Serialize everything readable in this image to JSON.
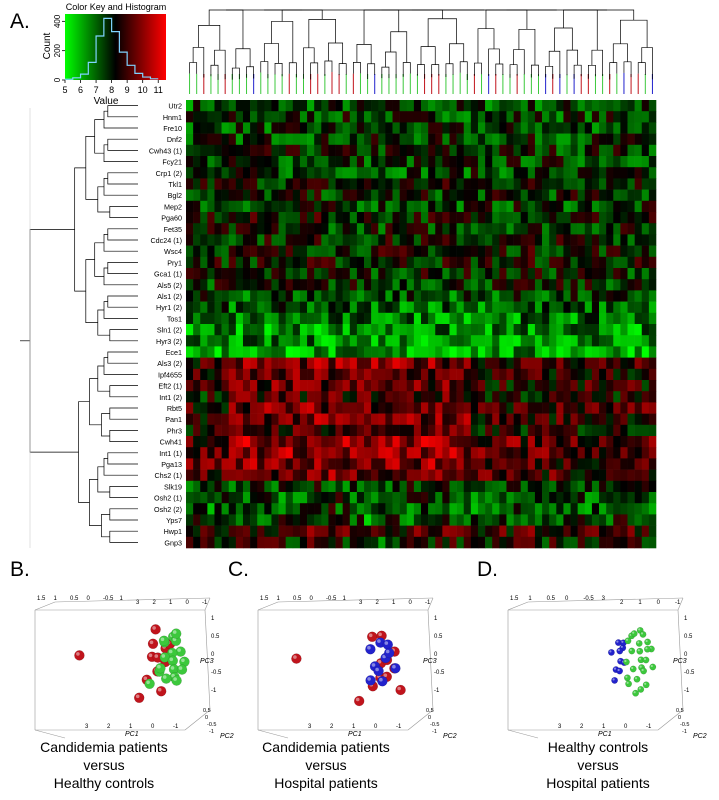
{
  "panels": {
    "a": {
      "letter": "A.",
      "color_key": {
        "title": "Color Key and Histogram",
        "xlabel": "Value",
        "ylabel": "Count",
        "x_ticks": [
          "5",
          "6",
          "7",
          "8",
          "9",
          "10",
          "11"
        ],
        "y_ticks": [
          "0",
          "200",
          "400"
        ]
      },
      "gene_labels": [
        "Utr2",
        "Hnm1",
        "Fre10",
        "Dnf2",
        "Cwh43 (1)",
        "Fcy21",
        "Crp1 (2)",
        "Tkl1",
        "Bgl2",
        "Mep2",
        "Pga60",
        "Fet35",
        "Cdc24 (1)",
        "Wsc4",
        "Pry1",
        "Gca1 (1)",
        "Als5 (2)",
        "Als1 (2)",
        "Hyr1 (2)",
        "Tos1",
        "Sln1 (2)",
        "Hyr3 (2)",
        "Ece1",
        "Als3 (2)",
        "Ipf4655",
        "Eft2 (1)",
        "Int1 (2)",
        "Rbt5",
        "Pan1",
        "Phr3",
        "Cwh41",
        "Int1 (1)",
        "Pga13",
        "Chs2 (1)",
        "Slk19",
        "Osh2 (1)",
        "Osh2 (2)",
        "Yps7",
        "Hwp1",
        "Gnp3"
      ]
    },
    "b": {
      "letter": "B.",
      "caption": [
        "Candidemia patients",
        "versus",
        "Healthy controls"
      ],
      "top_ticks": [
        "1.5",
        "1",
        "0.5",
        "0",
        "-0.5",
        "1",
        "3",
        "2",
        "1",
        "0",
        "-1"
      ],
      "right_ticks": [
        "1",
        "0.5",
        "0",
        "-0.5",
        "-1"
      ],
      "bottom_ticks": [
        "3",
        "2",
        "1",
        "0",
        "-1"
      ],
      "side_ticks": [
        "0.5",
        "0",
        "-0.5",
        "-1"
      ],
      "axis_labels": {
        "pc1": "PC1",
        "pc2": "PC2",
        "pc3": "PC3"
      }
    },
    "c": {
      "letter": "C.",
      "caption": [
        "Candidemia patients",
        "versus",
        "Hospital patients"
      ],
      "top_ticks": [
        "1.5",
        "1",
        "0.5",
        "0",
        "-0.5",
        "1",
        "3",
        "2",
        "1",
        "0",
        "-1"
      ],
      "right_ticks": [
        "1",
        "0.5",
        "0",
        "-0.5",
        "-1"
      ],
      "bottom_ticks": [
        "3",
        "2",
        "1",
        "0",
        "-1"
      ],
      "side_ticks": [
        "0.5",
        "0",
        "-0.5",
        "-1"
      ],
      "axis_labels": {
        "pc1": "PC1",
        "pc2": "PC2",
        "pc3": "PC3"
      }
    },
    "d": {
      "letter": "D.",
      "caption": [
        "Healthy controls",
        "versus",
        "Hospital patients"
      ],
      "top_ticks": [
        "1.5",
        "1",
        "0.5",
        "0",
        "-0.5",
        "3",
        "2",
        "1",
        "0",
        "-1"
      ],
      "right_ticks": [
        "1",
        "0.5",
        "0",
        "-0.5",
        "-1"
      ],
      "bottom_ticks": [
        "3",
        "2",
        "1",
        "0",
        "-1"
      ],
      "side_ticks": [
        "0.5",
        "0",
        "-0.5",
        "-1"
      ],
      "axis_labels": {
        "pc1": "PC1",
        "pc2": "PC2",
        "pc3": "PC3"
      }
    }
  },
  "colors": {
    "candidemia": "#c0141c",
    "healthy": "#3cc83c",
    "hospital": "#2222cc",
    "heat_low": "#00ff00",
    "heat_mid": "#000000",
    "heat_high": "#ff0000"
  },
  "chart_data": [
    {
      "type": "heatmap",
      "title": "Color Key and Histogram",
      "rows": [
        "Utr2",
        "Hnm1",
        "Fre10",
        "Dnf2",
        "Cwh43 (1)",
        "Fcy21",
        "Crp1 (2)",
        "Tkl1",
        "Bgl2",
        "Mep2",
        "Pga60",
        "Fet35",
        "Cdc24 (1)",
        "Wsc4",
        "Pry1",
        "Gca1 (1)",
        "Als5 (2)",
        "Als1 (2)",
        "Hyr1 (2)",
        "Tos1",
        "Sln1 (2)",
        "Hyr3 (2)",
        "Ece1",
        "Als3 (2)",
        "Ipf4655",
        "Eft2 (1)",
        "Int1 (2)",
        "Rbt5",
        "Pan1",
        "Phr3",
        "Cwh41",
        "Int1 (1)",
        "Pga13",
        "Chs2 (1)",
        "Slk19",
        "Osh2 (1)",
        "Osh2 (2)",
        "Yps7",
        "Hwp1",
        "Gnp3"
      ],
      "columns": 66,
      "value_range": [
        5,
        11
      ],
      "color_scale": [
        "green",
        "black",
        "red"
      ],
      "row_mean_values": [
        7.2,
        7.4,
        7.3,
        7.4,
        7.6,
        7.4,
        7.3,
        7.9,
        7.6,
        7.4,
        7.9,
        7.6,
        7.8,
        7.9,
        7.9,
        7.7,
        7.6,
        7.2,
        6.9,
        6.6,
        6.4,
        6.4,
        6.1,
        8.7,
        8.3,
        8.3,
        8.0,
        8.6,
        8.6,
        8.0,
        9.0,
        8.9,
        8.8,
        8.6,
        7.4,
        7.0,
        7.0,
        7.5,
        8.6,
        8.0
      ]
    },
    {
      "type": "bar",
      "title": "Color Key and Histogram",
      "xlabel": "Value",
      "ylabel": "Count",
      "x": [
        5.25,
        5.75,
        6.25,
        6.75,
        7.25,
        7.75,
        8.25,
        8.75,
        9.25,
        9.75,
        10.25,
        10.75
      ],
      "values": [
        5,
        15,
        40,
        120,
        300,
        420,
        330,
        190,
        100,
        45,
        20,
        8
      ],
      "xlim": [
        5,
        11.5
      ],
      "ylim": [
        0,
        450
      ]
    },
    {
      "type": "scatter",
      "title": "",
      "panel": "B",
      "xlabel": "PC1",
      "ylabel": "PC2",
      "zlabel": "PC3",
      "series": [
        {
          "name": "",
          "color": "#c0141c",
          "points": [
            [
              -2.6,
              0.3,
              0.2
            ],
            [
              -0.2,
              0.5,
              0.6
            ],
            [
              0.1,
              -0.3,
              0.9
            ],
            [
              0.3,
              0.2,
              0.4
            ],
            [
              -0.1,
              0.0,
              0.1
            ],
            [
              0.4,
              -0.2,
              -0.1
            ],
            [
              0.0,
              0.3,
              -0.3
            ],
            [
              0.2,
              -0.4,
              0.0
            ],
            [
              -0.3,
              0.1,
              -0.6
            ],
            [
              0.5,
              0.0,
              0.5
            ],
            [
              0.1,
              0.4,
              -0.9
            ],
            [
              -0.5,
              -0.1,
              -1.2
            ]
          ]
        },
        {
          "name": "",
          "color": "#3cc83c",
          "points": [
            [
              0.5,
              0.4,
              0.8
            ],
            [
              0.7,
              0.0,
              0.6
            ],
            [
              0.4,
              -0.3,
              0.5
            ],
            [
              0.8,
              0.2,
              0.3
            ],
            [
              0.6,
              -0.1,
              0.2
            ],
            [
              0.9,
              0.3,
              0.0
            ],
            [
              0.3,
              0.1,
              0.1
            ],
            [
              0.7,
              -0.4,
              -0.1
            ],
            [
              0.5,
              0.5,
              -0.2
            ],
            [
              0.9,
              0.0,
              -0.3
            ],
            [
              0.2,
              -0.2,
              -0.4
            ],
            [
              0.6,
              0.2,
              -0.5
            ],
            [
              0.4,
              -0.1,
              -0.6
            ],
            [
              0.8,
              -0.3,
              -0.7
            ],
            [
              0.1,
              0.3,
              -0.2
            ],
            [
              0.3,
              0.0,
              0.6
            ],
            [
              0.6,
              0.4,
              0.9
            ],
            [
              -0.1,
              -0.3,
              -0.8
            ]
          ]
        }
      ]
    },
    {
      "type": "scatter",
      "title": "",
      "panel": "C",
      "xlabel": "PC1",
      "ylabel": "PC2",
      "zlabel": "PC3",
      "series": [
        {
          "name": "",
          "color": "#c0141c",
          "points": [
            [
              -2.8,
              0.3,
              0.1
            ],
            [
              -0.3,
              0.4,
              0.8
            ],
            [
              0.2,
              -0.3,
              0.7
            ],
            [
              0.5,
              0.2,
              0.3
            ],
            [
              0.1,
              0.0,
              -0.1
            ],
            [
              0.6,
              -0.2,
              -0.3
            ],
            [
              0.0,
              0.3,
              -0.5
            ],
            [
              0.4,
              -0.4,
              -0.6
            ],
            [
              -0.2,
              0.1,
              -0.8
            ],
            [
              0.3,
              0.0,
              0.0
            ],
            [
              0.7,
              0.2,
              -0.9
            ],
            [
              -0.6,
              -0.1,
              -1.3
            ]
          ]
        },
        {
          "name": "",
          "color": "#2222cc",
          "points": [
            [
              0.0,
              0.3,
              0.6
            ],
            [
              0.3,
              0.1,
              0.5
            ],
            [
              -0.2,
              -0.2,
              0.3
            ],
            [
              0.2,
              0.2,
              0.1
            ],
            [
              0.4,
              -0.1,
              0.2
            ],
            [
              -0.1,
              0.0,
              -0.2
            ],
            [
              0.1,
              -0.3,
              -0.4
            ],
            [
              -0.3,
              0.2,
              -0.6
            ],
            [
              0.5,
              0.3,
              -0.2
            ],
            [
              0.2,
              -0.2,
              -0.7
            ]
          ]
        }
      ]
    },
    {
      "type": "scatter",
      "title": "",
      "panel": "D",
      "xlabel": "PC1",
      "ylabel": "PC2",
      "zlabel": "PC3",
      "series": [
        {
          "name": "",
          "color": "#2222cc",
          "points": [
            [
              -0.4,
              0.3,
              0.6
            ],
            [
              -0.2,
              0.1,
              0.4
            ],
            [
              -0.5,
              -0.2,
              0.2
            ],
            [
              -0.3,
              0.2,
              0.0
            ],
            [
              -0.1,
              -0.1,
              -0.1
            ],
            [
              -0.4,
              0.0,
              -0.3
            ],
            [
              -0.2,
              -0.3,
              -0.4
            ],
            [
              -0.5,
              0.2,
              -0.6
            ],
            [
              -0.3,
              0.1,
              0.3
            ],
            [
              -0.1,
              -0.2,
              0.5
            ]
          ]
        },
        {
          "name": "",
          "color": "#3cc83c",
          "points": [
            [
              0.3,
              0.4,
              1.0
            ],
            [
              0.5,
              0.0,
              0.8
            ],
            [
              0.2,
              -0.3,
              0.7
            ],
            [
              0.6,
              0.2,
              0.6
            ],
            [
              0.4,
              -0.1,
              0.5
            ],
            [
              0.7,
              0.3,
              0.4
            ],
            [
              0.1,
              0.1,
              0.3
            ],
            [
              0.5,
              -0.4,
              0.2
            ],
            [
              0.3,
              0.5,
              0.1
            ],
            [
              0.6,
              0.0,
              0.0
            ],
            [
              0.0,
              -0.2,
              -0.1
            ],
            [
              0.4,
              0.2,
              -0.2
            ],
            [
              0.2,
              -0.1,
              -0.3
            ],
            [
              0.6,
              -0.3,
              -0.4
            ],
            [
              -0.1,
              0.3,
              -0.5
            ],
            [
              0.3,
              0.0,
              -0.6
            ],
            [
              0.5,
              0.4,
              -0.7
            ],
            [
              0.1,
              -0.3,
              -0.8
            ],
            [
              0.4,
              0.1,
              -0.9
            ],
            [
              0.2,
              0.2,
              -1.0
            ],
            [
              0.0,
              0.0,
              0.6
            ],
            [
              0.7,
              -0.2,
              0.3
            ],
            [
              0.8,
              0.1,
              -0.2
            ],
            [
              0.1,
              0.4,
              0.9
            ]
          ]
        }
      ]
    }
  ]
}
